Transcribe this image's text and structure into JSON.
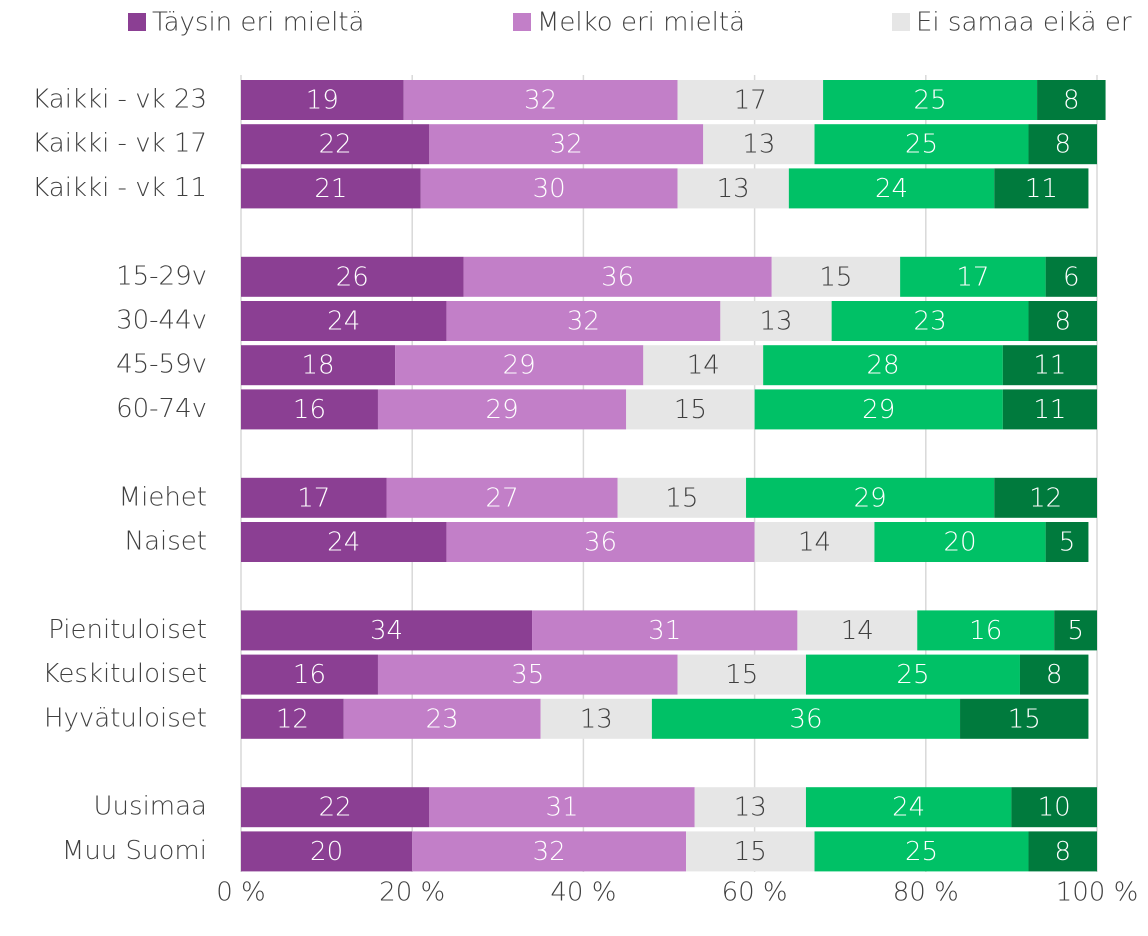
{
  "chart_data": {
    "type": "stacked-bar-horizontal",
    "categories": [
      "Kaikki - vk 23",
      "Kaikki - vk 17",
      "Kaikki - vk 11",
      null,
      "15-29v",
      "30-44v",
      "45-59v",
      "60-74v",
      null,
      "Miehet",
      "Naiset",
      null,
      "Pienituloiset",
      "Keskituloiset",
      "Hyvätuloiset",
      null,
      "Uusimaa",
      "Muu Suomi"
    ],
    "series": [
      {
        "name": "Täysin eri mieltä",
        "color": "#8b3f93",
        "values": [
          19,
          22,
          21,
          null,
          26,
          24,
          18,
          16,
          null,
          17,
          24,
          null,
          34,
          16,
          12,
          null,
          22,
          20
        ]
      },
      {
        "name": "Melko eri mieltä",
        "color": "#c27fc8",
        "values": [
          32,
          32,
          30,
          null,
          36,
          32,
          29,
          29,
          null,
          27,
          36,
          null,
          31,
          35,
          23,
          null,
          31,
          32
        ]
      },
      {
        "name": "Ei samaa eikä er",
        "color": "#e6e6e6",
        "values": [
          17,
          13,
          13,
          null,
          15,
          13,
          14,
          15,
          null,
          15,
          14,
          null,
          14,
          15,
          13,
          null,
          13,
          15
        ]
      },
      {
        "color": "#00c166",
        "values": [
          25,
          25,
          24,
          null,
          17,
          23,
          28,
          29,
          null,
          29,
          20,
          null,
          16,
          25,
          36,
          null,
          24,
          25
        ]
      },
      {
        "color": "#007a3d",
        "values": [
          8,
          8,
          11,
          null,
          6,
          8,
          11,
          11,
          null,
          12,
          5,
          null,
          5,
          8,
          15,
          null,
          10,
          8
        ]
      }
    ],
    "xlim": [
      0,
      100
    ],
    "xticks": [
      {
        "value": 0,
        "label": "0 %"
      },
      {
        "value": 20,
        "label": "20 %"
      },
      {
        "value": 40,
        "label": "40 %"
      },
      {
        "value": 60,
        "label": "60 %"
      },
      {
        "value": 80,
        "label": "80 %"
      },
      {
        "value": 100,
        "label": "100 %"
      }
    ],
    "grid": true
  }
}
